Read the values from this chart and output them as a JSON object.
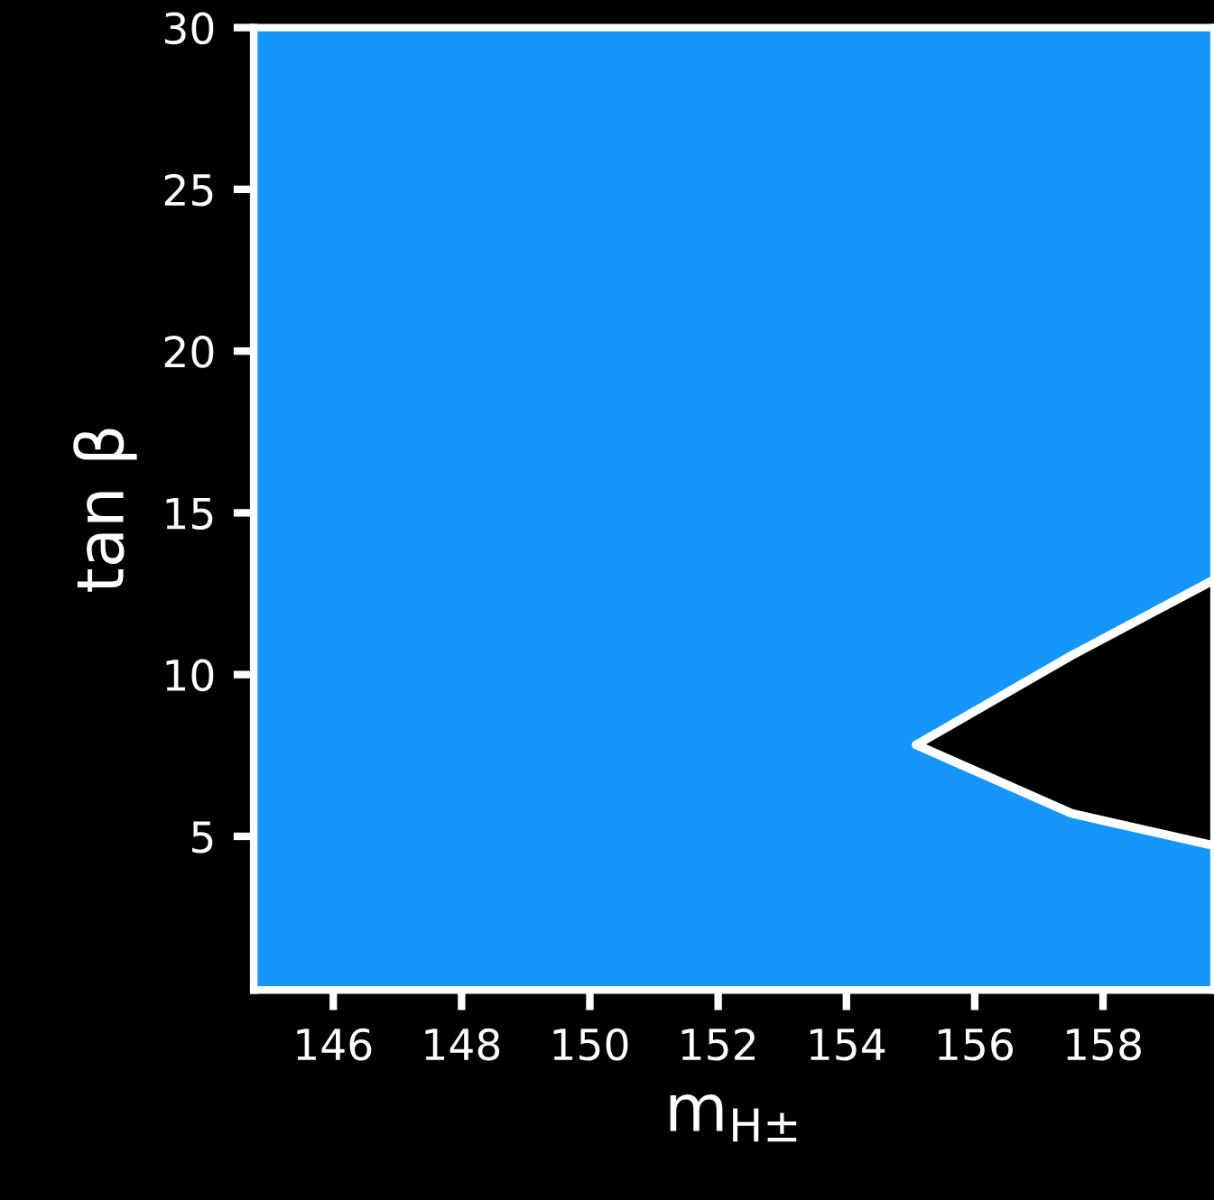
{
  "chart_data": {
    "type": "line",
    "xlabel": "m$_{H±}$",
    "ylabel": "tan β",
    "xlim": [
      144.76,
      159.73
    ],
    "ylim": [
      0.25,
      30
    ],
    "xticks": [
      146,
      148,
      150,
      152,
      154,
      156,
      158
    ],
    "yticks": [
      5,
      10,
      15,
      20,
      25,
      30
    ],
    "grid": false,
    "legend": false,
    "marker": "none",
    "line_style": "solid",
    "bands": [
      {
        "axis": "y",
        "from": 0.25,
        "to": 30,
        "color": "#1596fc"
      }
    ],
    "series": [
      {
        "color": "#ffffff",
        "x": [
          155.09,
          157.51,
          159.73
        ],
        "values": [
          7.83,
          10.59,
          12.93
        ],
        "lower": [
          7.83,
          5.71,
          4.71
        ],
        "upper": [
          7.83,
          10.59,
          12.93
        ]
      },
      {
        "color": "#ffffff",
        "x": [
          155.09,
          157.51,
          159.73
        ],
        "values": [
          7.83,
          5.71,
          4.71
        ]
      }
    ]
  }
}
